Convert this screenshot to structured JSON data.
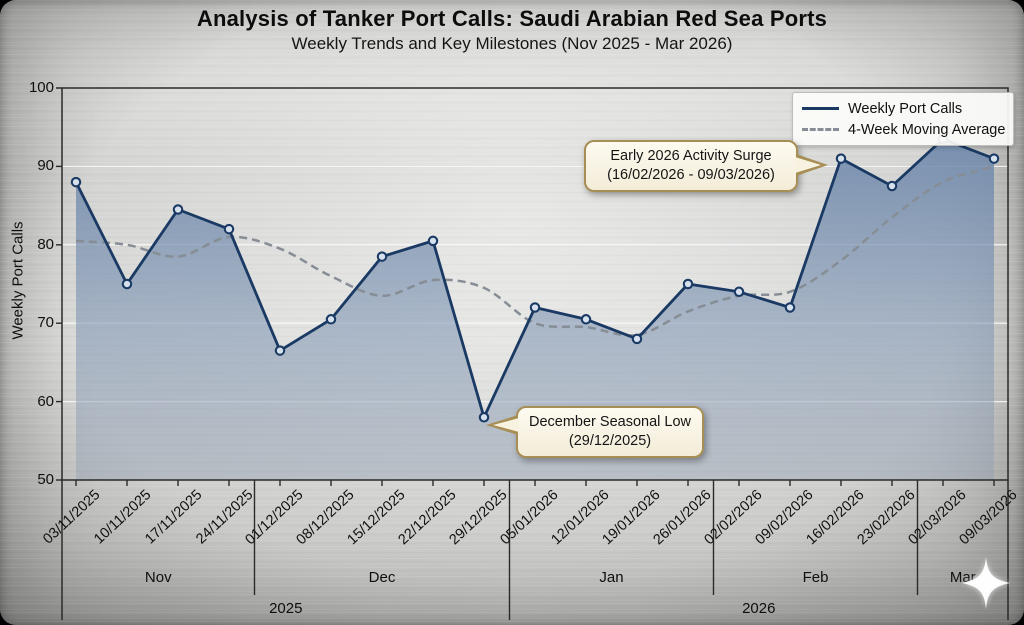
{
  "header": {
    "title": "Analysis of Tanker Port Calls: Saudi Arabian Red Sea Ports",
    "subtitle": "Weekly Trends and Key Milestones (Nov 2025 - Mar 2026)"
  },
  "legend": {
    "items": [
      {
        "label": "Weekly Port Calls",
        "style": "solid"
      },
      {
        "label": "4-Week Moving Average",
        "style": "dashed"
      }
    ]
  },
  "annotations": [
    {
      "line1": "Early 2026 Activity Surge",
      "line2": "(16/02/2026 - 09/03/2026)",
      "points_to": "16/02/2026"
    },
    {
      "line1": "December Seasonal Low",
      "line2": "(29/12/2025)",
      "points_to": "29/12/2025"
    }
  ],
  "watermark": {
    "icon": "sparkle-icon"
  },
  "colors": {
    "line": "#1a3a64",
    "moving_average": "#868d95",
    "fill_top": "#6e88ab",
    "fill_mid": "#8298b5",
    "fill_bottom": "#8d9cb0",
    "marker_fill": "#d7e1ed",
    "axis": "#2b2b2b",
    "grid": "#fafafa",
    "annotation_border": "#a68e55",
    "annotation_bg": "#f8f2e0"
  },
  "chart_data": {
    "type": "line",
    "title": "Analysis of Tanker Port Calls: Saudi Arabian Red Sea Ports",
    "subtitle": "Weekly Trends and Key Milestones (Nov 2025 - Mar 2026)",
    "x": [
      "03/11/2025",
      "10/11/2025",
      "17/11/2025",
      "24/11/2025",
      "01/12/2025",
      "08/12/2025",
      "15/12/2025",
      "22/12/2025",
      "29/12/2025",
      "05/01/2026",
      "12/01/2026",
      "19/01/2026",
      "26/01/2026",
      "02/02/2026",
      "09/02/2026",
      "16/02/2026",
      "23/02/2026",
      "02/03/2026",
      "09/03/2026"
    ],
    "series": [
      {
        "name": "Weekly Port Calls",
        "values": [
          88,
          75,
          84.5,
          82,
          66.5,
          70.5,
          78.5,
          80.5,
          58,
          72,
          70.5,
          68,
          75,
          74,
          72,
          91,
          87.5,
          93.5,
          91
        ]
      },
      {
        "name": "4-Week Moving Average",
        "values": [
          80.5,
          80,
          78.5,
          81,
          79.5,
          76,
          73.5,
          75.5,
          74.5,
          70,
          69.5,
          68.5,
          71.5,
          73.5,
          74,
          78,
          83.5,
          88,
          90
        ]
      }
    ],
    "ylabel": "Weekly Port Calls",
    "xlabel": "",
    "ylim": [
      50,
      100
    ],
    "yticks": [
      50,
      60,
      70,
      80,
      90,
      100
    ],
    "grid": "horizontal",
    "legend_position": "upper right",
    "month_groups": [
      {
        "label": "Nov",
        "span": [
          0,
          3
        ]
      },
      {
        "label": "Dec",
        "span": [
          4,
          8
        ]
      },
      {
        "label": "Jan",
        "span": [
          9,
          12
        ]
      },
      {
        "label": "Feb",
        "span": [
          13,
          16
        ]
      },
      {
        "label": "Mar",
        "span": [
          17,
          18
        ]
      }
    ],
    "year_groups": [
      {
        "label": "2025",
        "span": [
          0,
          8
        ]
      },
      {
        "label": "2026",
        "span": [
          9,
          18
        ]
      }
    ]
  }
}
